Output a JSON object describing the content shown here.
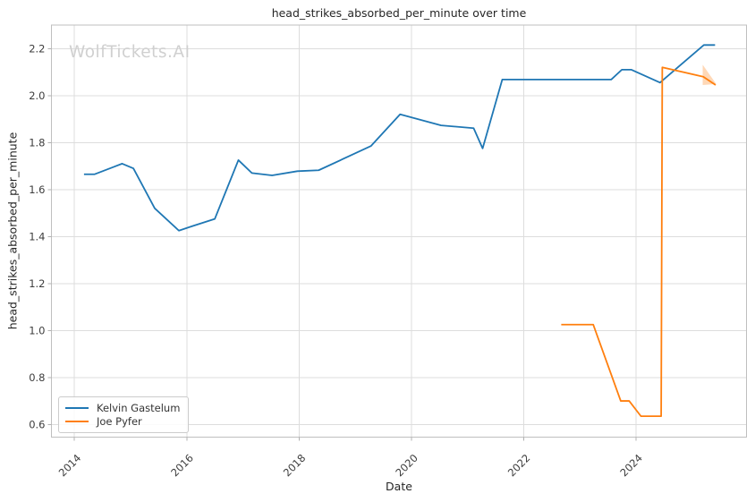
{
  "watermark": "WolfTickets.AI",
  "chart_data": {
    "type": "line",
    "title": "head_strikes_absorbed_per_minute over time",
    "xlabel": "Date",
    "ylabel": "head_strikes_absorbed_per_minute",
    "xlim": [
      2013.59,
      2025.97
    ],
    "ylim": [
      0.546,
      2.3
    ],
    "xticks": [
      2014,
      2016,
      2018,
      2020,
      2022,
      2024
    ],
    "yticks": [
      0.6,
      0.8,
      1.0,
      1.2,
      1.4,
      1.6,
      1.8,
      2.0,
      2.2
    ],
    "grid": true,
    "legend_position": "lower-left",
    "colors": {
      "grid": "#dddddd",
      "spine": "#bfbfbf",
      "tick": "#b0b0b0",
      "tick_text": "#3d3d3d"
    },
    "series": [
      {
        "name": "Kelvin Gastelum",
        "color": "#1f77b4",
        "x": [
          2014.17,
          2014.36,
          2014.85,
          2015.05,
          2015.43,
          2015.86,
          2016.11,
          2016.5,
          2016.92,
          2017.16,
          2017.52,
          2017.97,
          2018.35,
          2019.28,
          2019.8,
          2020.53,
          2021.11,
          2021.27,
          2021.62,
          2023.56,
          2023.75,
          2023.92,
          2024.43,
          2025.21,
          2025.41
        ],
        "y": [
          1.665,
          1.665,
          1.71,
          1.69,
          1.52,
          1.425,
          1.445,
          1.475,
          1.725,
          1.67,
          1.66,
          1.678,
          1.682,
          1.785,
          1.92,
          1.873,
          1.861,
          1.775,
          2.068,
          2.068,
          2.11,
          2.11,
          2.055,
          2.215,
          2.215
        ]
      },
      {
        "name": "Joe Pyfer",
        "color": "#ff7f0e",
        "x": [
          2022.67,
          2023.24,
          2023.73,
          2023.88,
          2024.09,
          2024.45,
          2024.47,
          2025.2,
          2025.42
        ],
        "y": [
          1.025,
          1.025,
          0.7,
          0.7,
          0.635,
          0.635,
          2.12,
          2.08,
          2.045
        ]
      }
    ],
    "annotations": [
      {
        "type": "arrowhead",
        "series": "Joe Pyfer",
        "color": "#ff7f0e",
        "opacity": 0.3,
        "points": [
          [
            2025.19,
            2.131
          ],
          [
            2025.19,
            2.045
          ],
          [
            2025.43,
            2.049
          ]
        ]
      }
    ]
  }
}
